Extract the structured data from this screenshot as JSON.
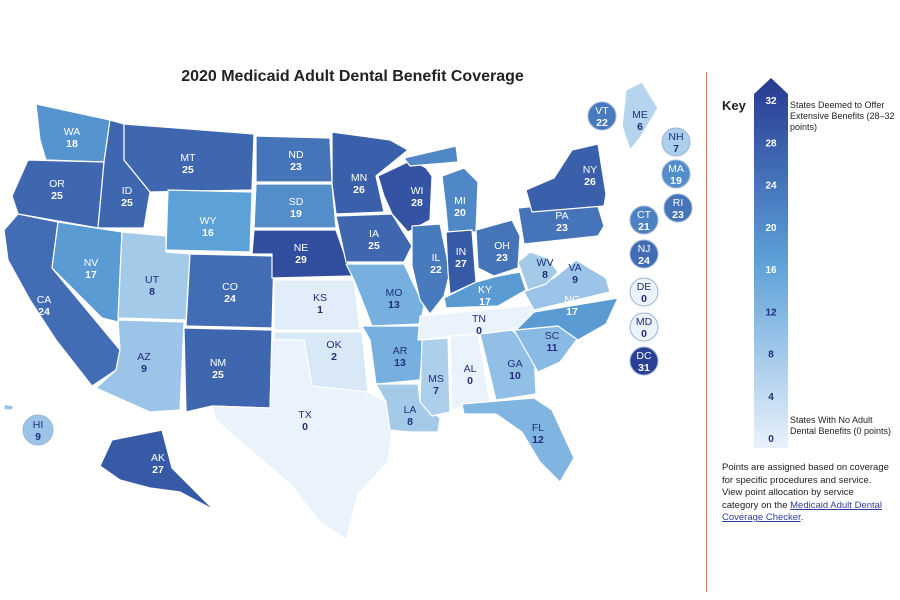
{
  "title": "2020 Medicaid Adult Dental Benefit Coverage",
  "key": {
    "title": "Key",
    "top_label": "States Deemed to Offer Extensive Benefits (28–32 points)",
    "bottom_label": "States With No Adult Dental Benefits (0 points)",
    "ticks": [
      "32",
      "28",
      "24",
      "20",
      "16",
      "12",
      "8",
      "4",
      "0"
    ],
    "colors": {
      "low": "#eaf2fb",
      "mid": "#5da1d9",
      "high": "#263990"
    }
  },
  "note": {
    "text": "Points are assigned based on coverage for specific procedures and service. View point allocation by service category on the ",
    "link": "Medicaid Adult Dental Coverage Checker",
    "end": "."
  },
  "states": [
    {
      "abbr": "WA",
      "value": "18"
    },
    {
      "abbr": "OR",
      "value": "25"
    },
    {
      "abbr": "CA",
      "value": "24"
    },
    {
      "abbr": "ID",
      "value": "25"
    },
    {
      "abbr": "NV",
      "value": "17"
    },
    {
      "abbr": "MT",
      "value": "25"
    },
    {
      "abbr": "WY",
      "value": "16"
    },
    {
      "abbr": "UT",
      "value": "8"
    },
    {
      "abbr": "AZ",
      "value": "9"
    },
    {
      "abbr": "CO",
      "value": "24"
    },
    {
      "abbr": "NM",
      "value": "25"
    },
    {
      "abbr": "ND",
      "value": "23"
    },
    {
      "abbr": "SD",
      "value": "19"
    },
    {
      "abbr": "NE",
      "value": "29"
    },
    {
      "abbr": "KS",
      "value": "1"
    },
    {
      "abbr": "OK",
      "value": "2"
    },
    {
      "abbr": "TX",
      "value": "0"
    },
    {
      "abbr": "MN",
      "value": "26"
    },
    {
      "abbr": "IA",
      "value": "25"
    },
    {
      "abbr": "MO",
      "value": "13"
    },
    {
      "abbr": "AR",
      "value": "13"
    },
    {
      "abbr": "LA",
      "value": "8"
    },
    {
      "abbr": "WI",
      "value": "28"
    },
    {
      "abbr": "IL",
      "value": "22"
    },
    {
      "abbr": "MI",
      "value": "20"
    },
    {
      "abbr": "IN",
      "value": "27"
    },
    {
      "abbr": "OH",
      "value": "23"
    },
    {
      "abbr": "KY",
      "value": "17"
    },
    {
      "abbr": "TN",
      "value": "0"
    },
    {
      "abbr": "MS",
      "value": "7"
    },
    {
      "abbr": "AL",
      "value": "0"
    },
    {
      "abbr": "GA",
      "value": "10"
    },
    {
      "abbr": "FL",
      "value": "12"
    },
    {
      "abbr": "SC",
      "value": "11"
    },
    {
      "abbr": "NC",
      "value": "17"
    },
    {
      "abbr": "VA",
      "value": "9"
    },
    {
      "abbr": "WV",
      "value": "8"
    },
    {
      "abbr": "PA",
      "value": "23"
    },
    {
      "abbr": "NY",
      "value": "26"
    },
    {
      "abbr": "ME",
      "value": "6"
    },
    {
      "abbr": "AK",
      "value": "27"
    },
    {
      "abbr": "HI",
      "value": "9"
    },
    {
      "abbr": "VT",
      "value": "22"
    },
    {
      "abbr": "NH",
      "value": "7"
    },
    {
      "abbr": "MA",
      "value": "19"
    },
    {
      "abbr": "RI",
      "value": "23"
    },
    {
      "abbr": "CT",
      "value": "21"
    },
    {
      "abbr": "NJ",
      "value": "24"
    },
    {
      "abbr": "DE",
      "value": "0"
    },
    {
      "abbr": "MD",
      "value": "0"
    },
    {
      "abbr": "DC",
      "value": "31"
    }
  ]
}
